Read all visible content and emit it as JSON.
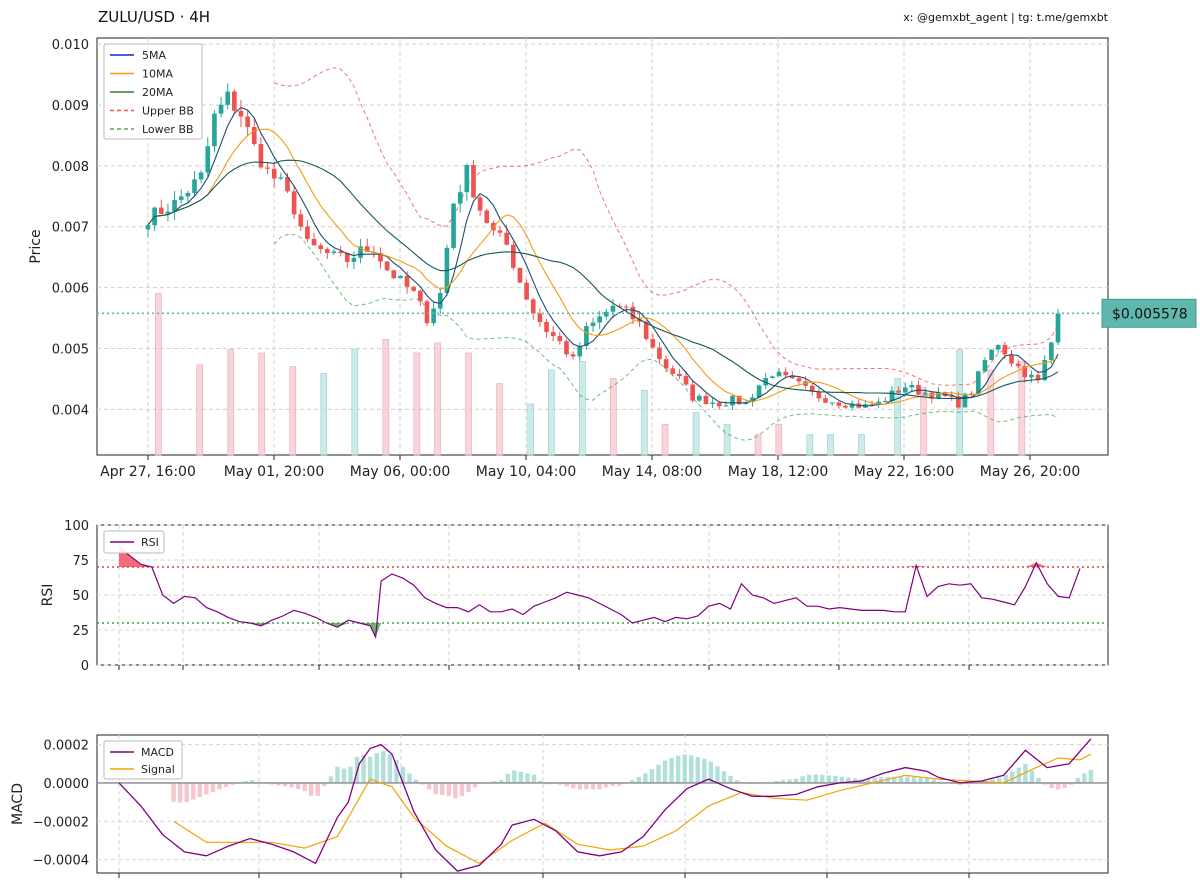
{
  "header": {
    "title": "ZULU/USD · 4H",
    "credits": "x: @gemxbt_agent | tg: t.me/gemxbt"
  },
  "colors": {
    "up": "#26a69a",
    "down": "#ef5350",
    "ma5": "#1f1fd6",
    "ma10": "#f39c12",
    "ma20": "#2e7d32",
    "upper_bb": "#ef5350",
    "lower_bb": "#4caf50",
    "rsi": "#800080",
    "macd": "#800080",
    "signal": "#f0a500",
    "price_tag": "#5fb8ad"
  },
  "chart_data": [
    {
      "type": "candlestick",
      "ylabel": "Price",
      "ylim": [
        0.00325,
        0.0101
      ],
      "yticks": [
        "0.004",
        "0.005",
        "0.006",
        "0.007",
        "0.008",
        "0.009",
        "0.010"
      ],
      "xticks": [
        "Apr 27, 16:00",
        "May 01, 20:00",
        "May 06, 00:00",
        "May 10, 04:00",
        "May 14, 08:00",
        "May 18, 12:00",
        "May 22, 16:00",
        "May 26, 20:00"
      ],
      "legend": [
        "5MA",
        "10MA",
        "20MA",
        "Upper BB",
        "Lower BB"
      ],
      "legend_position": "top-left",
      "grid": true,
      "current_price": 0.005578,
      "current_price_label": "$0.005578",
      "close_key": [
        [
          0,
          0.00715
        ],
        [
          4,
          0.00738
        ],
        [
          8,
          0.00782
        ],
        [
          10,
          0.0088
        ],
        [
          12,
          0.00912
        ],
        [
          14,
          0.00885
        ],
        [
          16,
          0.0083
        ],
        [
          18,
          0.0079
        ],
        [
          20,
          0.0077
        ],
        [
          22,
          0.0073
        ],
        [
          24,
          0.0067
        ],
        [
          26,
          0.0066
        ],
        [
          28,
          0.0065
        ],
        [
          30,
          0.00645
        ],
        [
          32,
          0.0066
        ],
        [
          34,
          0.00665
        ],
        [
          36,
          0.0063
        ],
        [
          38,
          0.0061
        ],
        [
          40,
          0.0059
        ],
        [
          42,
          0.0055
        ],
        [
          44,
          0.0059
        ],
        [
          46,
          0.0074
        ],
        [
          48,
          0.0079
        ],
        [
          50,
          0.0073
        ],
        [
          52,
          0.0069
        ],
        [
          54,
          0.0067
        ],
        [
          56,
          0.0061
        ],
        [
          58,
          0.0056
        ],
        [
          60,
          0.0053
        ],
        [
          62,
          0.0051
        ],
        [
          64,
          0.0048
        ],
        [
          66,
          0.0053
        ],
        [
          68,
          0.0055
        ],
        [
          70,
          0.0057
        ],
        [
          72,
          0.0056
        ],
        [
          74,
          0.0054
        ],
        [
          76,
          0.005
        ],
        [
          78,
          0.0047
        ],
        [
          80,
          0.0045
        ],
        [
          82,
          0.0042
        ],
        [
          84,
          0.00415
        ],
        [
          86,
          0.0041
        ],
        [
          88,
          0.00415
        ],
        [
          90,
          0.0041
        ],
        [
          92,
          0.0044
        ],
        [
          94,
          0.0046
        ],
        [
          96,
          0.0045
        ],
        [
          98,
          0.0044
        ],
        [
          100,
          0.00425
        ],
        [
          102,
          0.00418
        ],
        [
          104,
          0.00412
        ],
        [
          106,
          0.00408
        ],
        [
          108,
          0.00405
        ],
        [
          110,
          0.0041
        ],
        [
          112,
          0.00425
        ],
        [
          114,
          0.00438
        ],
        [
          116,
          0.0043
        ],
        [
          118,
          0.00425
        ],
        [
          120,
          0.0042
        ],
        [
          122,
          0.0041
        ],
        [
          124,
          0.0043
        ],
        [
          126,
          0.0048
        ],
        [
          128,
          0.0051
        ],
        [
          130,
          0.0048
        ],
        [
          132,
          0.0046
        ],
        [
          134,
          0.00445
        ],
        [
          136,
          0.0051
        ],
        [
          137,
          0.00557
        ]
      ],
      "volume_key": [
        [
          2,
          0.95,
          "down"
        ],
        [
          10,
          0.53,
          "down"
        ],
        [
          16,
          0.62,
          "down"
        ],
        [
          22,
          0.6,
          "down"
        ],
        [
          28,
          0.52,
          "down"
        ],
        [
          34,
          0.48,
          "up"
        ],
        [
          40,
          0.62,
          "up"
        ],
        [
          46,
          0.68,
          "down"
        ],
        [
          52,
          0.6,
          "down"
        ],
        [
          56,
          0.66,
          "down"
        ],
        [
          62,
          0.6,
          "down"
        ],
        [
          68,
          0.42,
          "down"
        ],
        [
          74,
          0.3,
          "up"
        ],
        [
          78,
          0.5,
          "up"
        ],
        [
          84,
          0.55,
          "up"
        ],
        [
          90,
          0.45,
          "down"
        ],
        [
          96,
          0.38,
          "up"
        ],
        [
          100,
          0.18,
          "down"
        ],
        [
          106,
          0.25,
          "up"
        ],
        [
          112,
          0.18,
          "up"
        ],
        [
          118,
          0.12,
          "down"
        ],
        [
          122,
          0.18,
          "down"
        ],
        [
          128,
          0.12,
          "up"
        ],
        [
          132,
          0.12,
          "up"
        ],
        [
          138,
          0.12,
          "up"
        ],
        [
          145,
          0.45,
          "up"
        ],
        [
          150,
          0.4,
          "down"
        ],
        [
          157,
          0.62,
          "up"
        ],
        [
          163,
          0.5,
          "down"
        ],
        [
          169,
          0.55,
          "down"
        ]
      ]
    },
    {
      "type": "line",
      "ylabel": "RSI",
      "ylim": [
        0,
        100
      ],
      "yticks": [
        "0",
        "25",
        "50",
        "75",
        "100"
      ],
      "overbought": 70,
      "oversold": 30,
      "legend": [
        "RSI"
      ],
      "legend_position": "top-left",
      "series": [
        {
          "name": "RSI",
          "x": [
            0,
            2,
            4,
            6,
            8,
            10,
            12,
            14,
            16,
            18,
            20,
            22,
            24,
            26,
            28,
            30,
            32,
            34,
            36,
            38,
            40,
            42,
            44,
            46,
            47,
            48,
            50,
            52,
            54,
            56,
            58,
            60,
            62,
            64,
            66,
            68,
            70,
            72,
            74,
            76,
            78,
            80,
            82,
            84,
            86,
            88,
            90,
            92,
            94,
            96,
            98,
            100,
            102,
            104,
            106,
            108,
            110,
            112,
            114,
            116,
            118,
            120,
            122,
            124,
            126,
            128,
            130,
            132,
            134,
            136,
            138,
            140,
            142,
            144,
            146,
            148,
            150,
            152,
            154,
            156,
            158,
            160,
            162,
            164,
            166,
            168,
            170,
            172,
            174,
            176
          ],
          "values": [
            84,
            78,
            72,
            70,
            50,
            44,
            49,
            48,
            41,
            38,
            34,
            31,
            30,
            28,
            32,
            35,
            39,
            37,
            34,
            30,
            27,
            32,
            30,
            28,
            20,
            60,
            65,
            62,
            57,
            48,
            44,
            41,
            41,
            38,
            43,
            38,
            38,
            40,
            36,
            42,
            45,
            48,
            52,
            50,
            48,
            44,
            40,
            36,
            30,
            32,
            34,
            31,
            34,
            33,
            35,
            42,
            44,
            40,
            58,
            50,
            48,
            44,
            46,
            48,
            42,
            42,
            40,
            41,
            40,
            39,
            39,
            39,
            38,
            38,
            71,
            49,
            56,
            58,
            57,
            58,
            48,
            47,
            45,
            43,
            56,
            73,
            58,
            49,
            48,
            69
          ]
        }
      ]
    },
    {
      "type": "line",
      "ylabel": "MACD",
      "ylim": [
        -0.00047,
        0.00025
      ],
      "yticks": [
        "−0.0004",
        "−0.0002",
        "0.0000",
        "0.0002"
      ],
      "legend": [
        "MACD",
        "Signal"
      ],
      "legend_position": "top-left",
      "series": [
        {
          "name": "MACD",
          "x": [
            0,
            4,
            8,
            12,
            16,
            20,
            24,
            28,
            32,
            36,
            40,
            42,
            44,
            46,
            48,
            50,
            54,
            58,
            62,
            66,
            70,
            72,
            76,
            80,
            84,
            88,
            92,
            96,
            100,
            104,
            108,
            112,
            116,
            120,
            124,
            128,
            132,
            136,
            140,
            144,
            148,
            150,
            154,
            158,
            162,
            166,
            170,
            174,
            178
          ],
          "values": [
            0.0,
            -0.00012,
            -0.00027,
            -0.00036,
            -0.00038,
            -0.00033,
            -0.00029,
            -0.00032,
            -0.00036,
            -0.00042,
            -0.00018,
            -0.0001,
            0.0001,
            0.00018,
            0.0002,
            0.00015,
            -0.00015,
            -0.00035,
            -0.00046,
            -0.00043,
            -0.00032,
            -0.00022,
            -0.00019,
            -0.00025,
            -0.00036,
            -0.00038,
            -0.00036,
            -0.00028,
            -0.00014,
            -3e-05,
            2e-05,
            -3e-05,
            -7e-05,
            -7e-05,
            -6e-05,
            -2e-05,
            0.0,
            1e-05,
            5e-05,
            8e-05,
            6e-05,
            3e-05,
            0.0,
            1e-05,
            4e-05,
            0.00017,
            8e-05,
            0.0001,
            0.00023
          ]
        },
        {
          "name": "Signal",
          "x": [
            10,
            16,
            22,
            28,
            34,
            40,
            46,
            50,
            54,
            60,
            66,
            72,
            78,
            84,
            90,
            96,
            102,
            108,
            114,
            120,
            126,
            132,
            138,
            144,
            150,
            156,
            162,
            168,
            172,
            176,
            178
          ],
          "values": [
            -0.0002,
            -0.00031,
            -0.00031,
            -0.00031,
            -0.00034,
            -0.00028,
            2e-05,
            -2e-05,
            -0.00018,
            -0.00033,
            -0.00042,
            -0.0003,
            -0.00021,
            -0.00032,
            -0.00035,
            -0.00033,
            -0.00025,
            -0.00012,
            -5e-05,
            -8e-05,
            -9e-05,
            -4e-05,
            0.0,
            4e-05,
            2e-05,
            1e-05,
            0.0,
            8e-05,
            0.00013,
            0.00012,
            0.00015
          ]
        }
      ]
    }
  ]
}
